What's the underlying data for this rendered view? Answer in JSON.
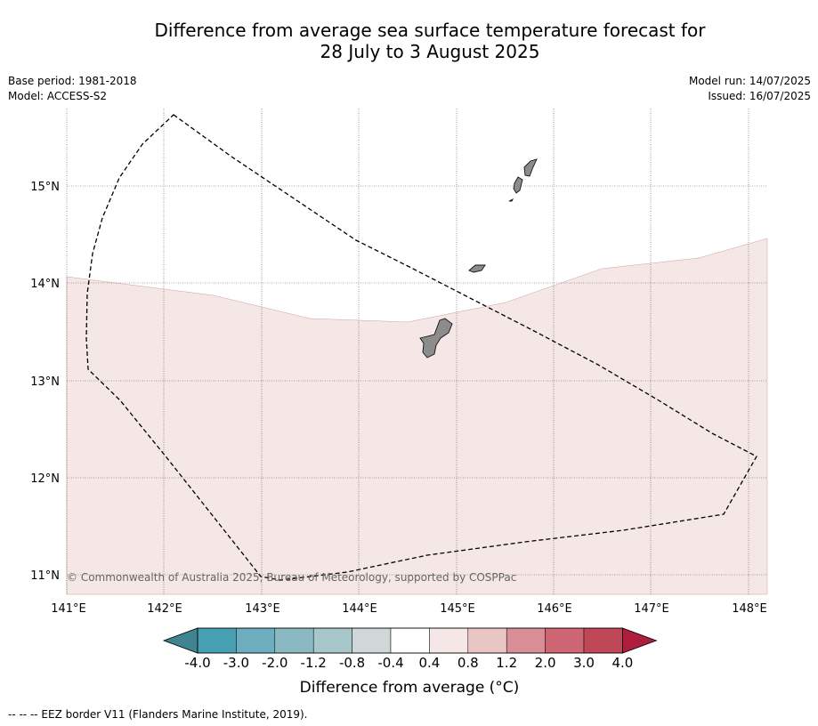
{
  "title_line1": "Difference from average sea surface temperature forecast for",
  "title_line2": "28 July to 3 August 2025",
  "meta_left": {
    "base_period": "Base period: 1981-2018",
    "model": "Model: ACCESS-S2"
  },
  "meta_right": {
    "model_run": "Model run: 14/07/2025",
    "issued": "Issued: 16/07/2025"
  },
  "map": {
    "lon_ticks": [
      "141°E",
      "142°E",
      "143°E",
      "144°E",
      "145°E",
      "146°E",
      "147°E",
      "148°E"
    ],
    "lat_ticks": [
      "15°N",
      "14°N",
      "13°N",
      "12°N",
      "11°N"
    ],
    "lon_range": [
      141.0,
      148.2
    ],
    "lat_range": [
      10.8,
      15.8
    ],
    "anomaly_region_class": "0.4 to 0.8",
    "colors": {
      "anomaly_fill": "#f5e7e6",
      "land": "#8c8c8c"
    },
    "copyright": "© Commonwealth of Australia 2025, Bureau of Meteorology, supported by COSPPac"
  },
  "colorbar": {
    "tick_labels": [
      "-4.0",
      "-3.0",
      "-2.0",
      "-1.2",
      "-0.8",
      "-0.4",
      "0.4",
      "0.8",
      "1.2",
      "2.0",
      "3.0",
      "4.0"
    ],
    "colors": [
      "#479fb4",
      "#6caebd",
      "#8ab8c3",
      "#a8c7cb",
      "#d1d7d8",
      "#ffffff",
      "#f5e7e6",
      "#e9c6c3",
      "#d98e95",
      "#cd6672",
      "#c04757"
    ],
    "under_color": "#3e8591",
    "over_color": "#b01e3e",
    "label": "Difference from average (°C)"
  },
  "footer": "-- -- -- EEZ border V11 (Flanders Marine Institute, 2019)."
}
